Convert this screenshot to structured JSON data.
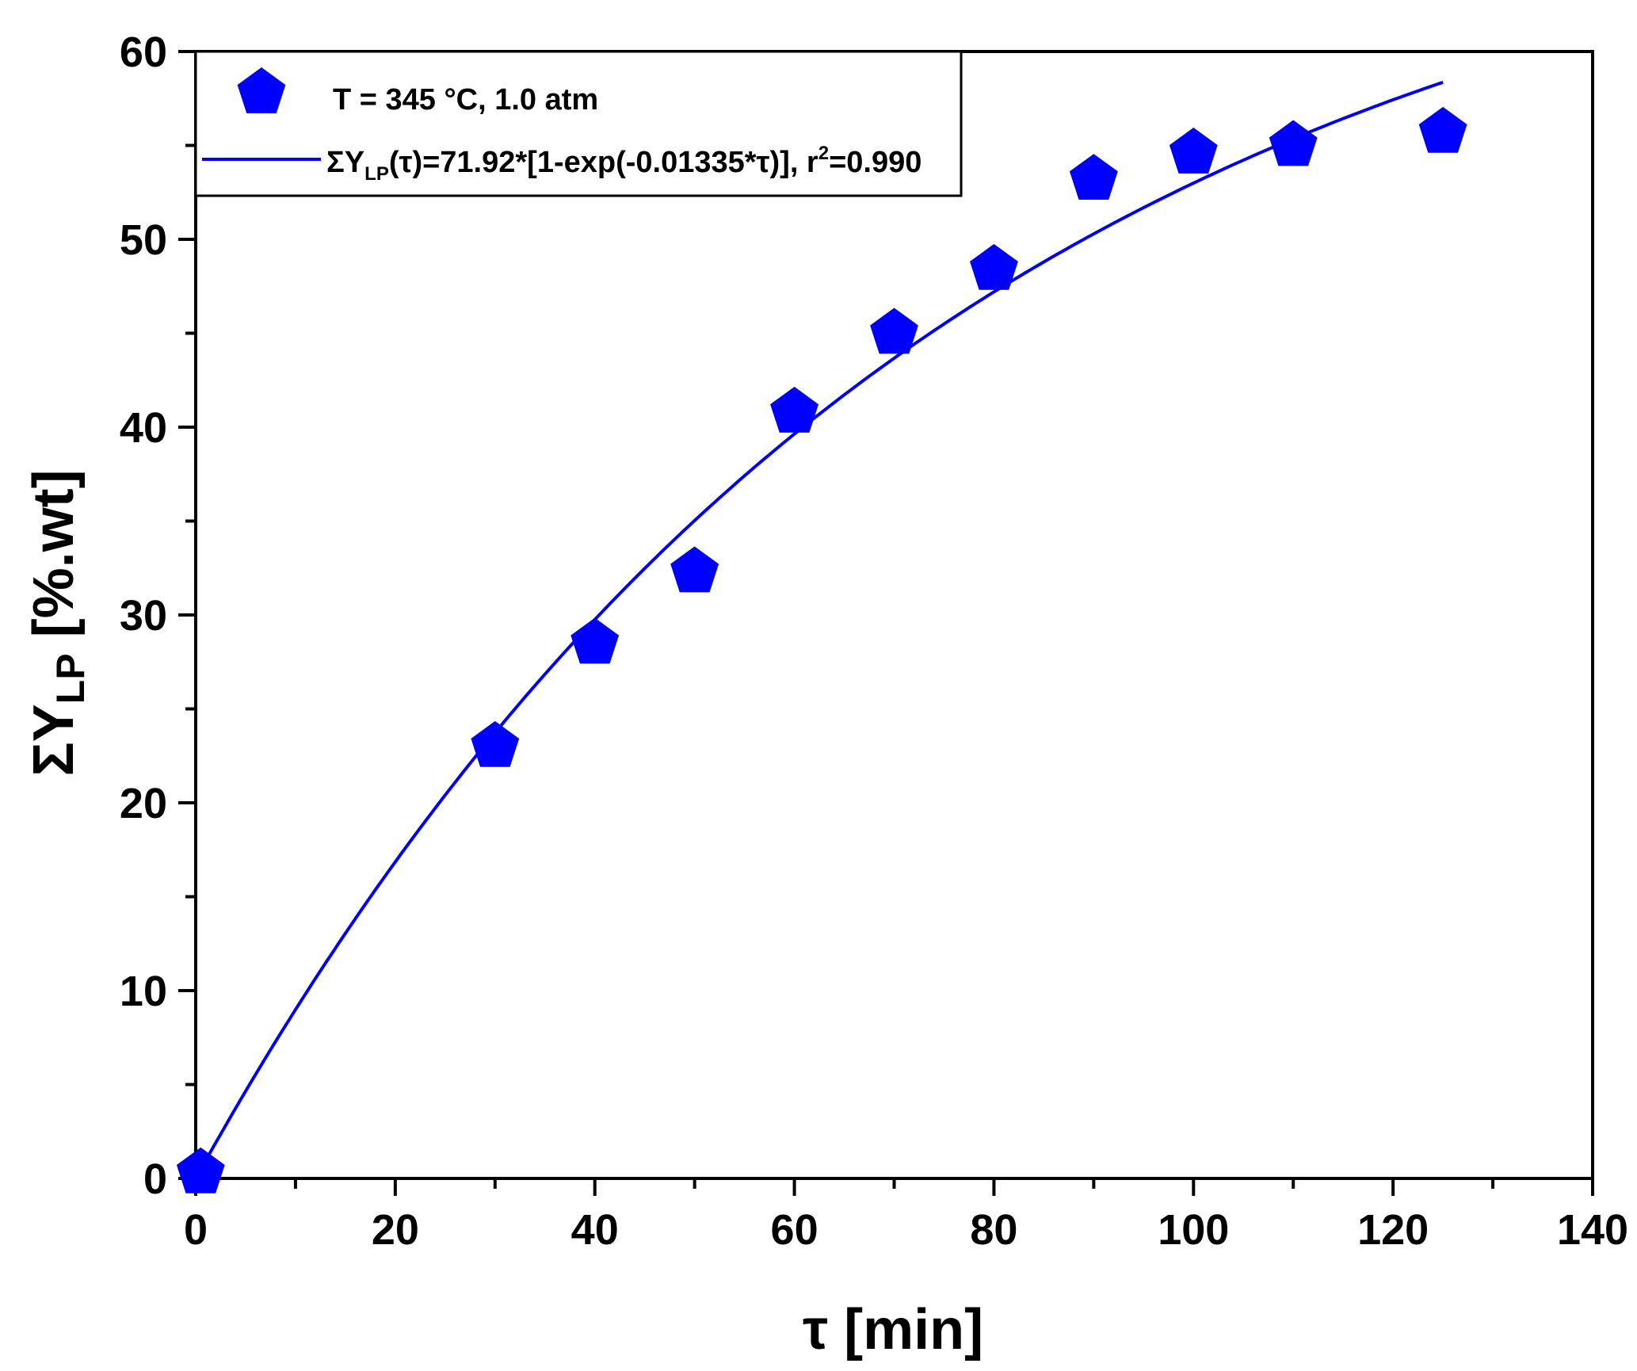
{
  "chart_data": {
    "type": "scatter",
    "title": "",
    "xlabel": "τ [min]",
    "ylabel_main": "ΣY",
    "ylabel_sub": "LP",
    "ylabel_tail": " [%.wt]",
    "xlim": [
      0,
      140
    ],
    "ylim": [
      0,
      60
    ],
    "x_ticks": [
      0,
      20,
      40,
      60,
      80,
      100,
      120,
      140
    ],
    "y_ticks": [
      0,
      10,
      20,
      30,
      40,
      50,
      60
    ],
    "grid": false,
    "legend_position": "top-left",
    "series": [
      {
        "name": "T = 345 °C, 1.0 atm",
        "kind": "scatter",
        "marker": "pentagon",
        "color": "#0000FF",
        "x": [
          0.5,
          30,
          40,
          50,
          60,
          70,
          80,
          90,
          100,
          110,
          125
        ],
        "y": [
          0.3,
          23.0,
          28.5,
          32.3,
          40.8,
          45.0,
          48.4,
          53.2,
          54.6,
          55.0,
          55.7
        ]
      },
      {
        "name": "ΣY_LP(τ)=71.92*[1-exp(-0.01335*τ)], r^2=0.990",
        "kind": "line",
        "color": "#0000FF",
        "model": {
          "A": 71.92,
          "k": 0.01335
        },
        "x_range": [
          0,
          125
        ]
      }
    ],
    "legend": {
      "scatter_label": "T = 345 °C, 1.0 atm",
      "fit_label_prefix": "ΣY",
      "fit_label_sub": "LP",
      "fit_label_mid": "(τ)=71.92*[1-exp(-0.01335*τ)], r",
      "fit_label_sup": "2",
      "fit_label_tail": "=0.990"
    }
  }
}
